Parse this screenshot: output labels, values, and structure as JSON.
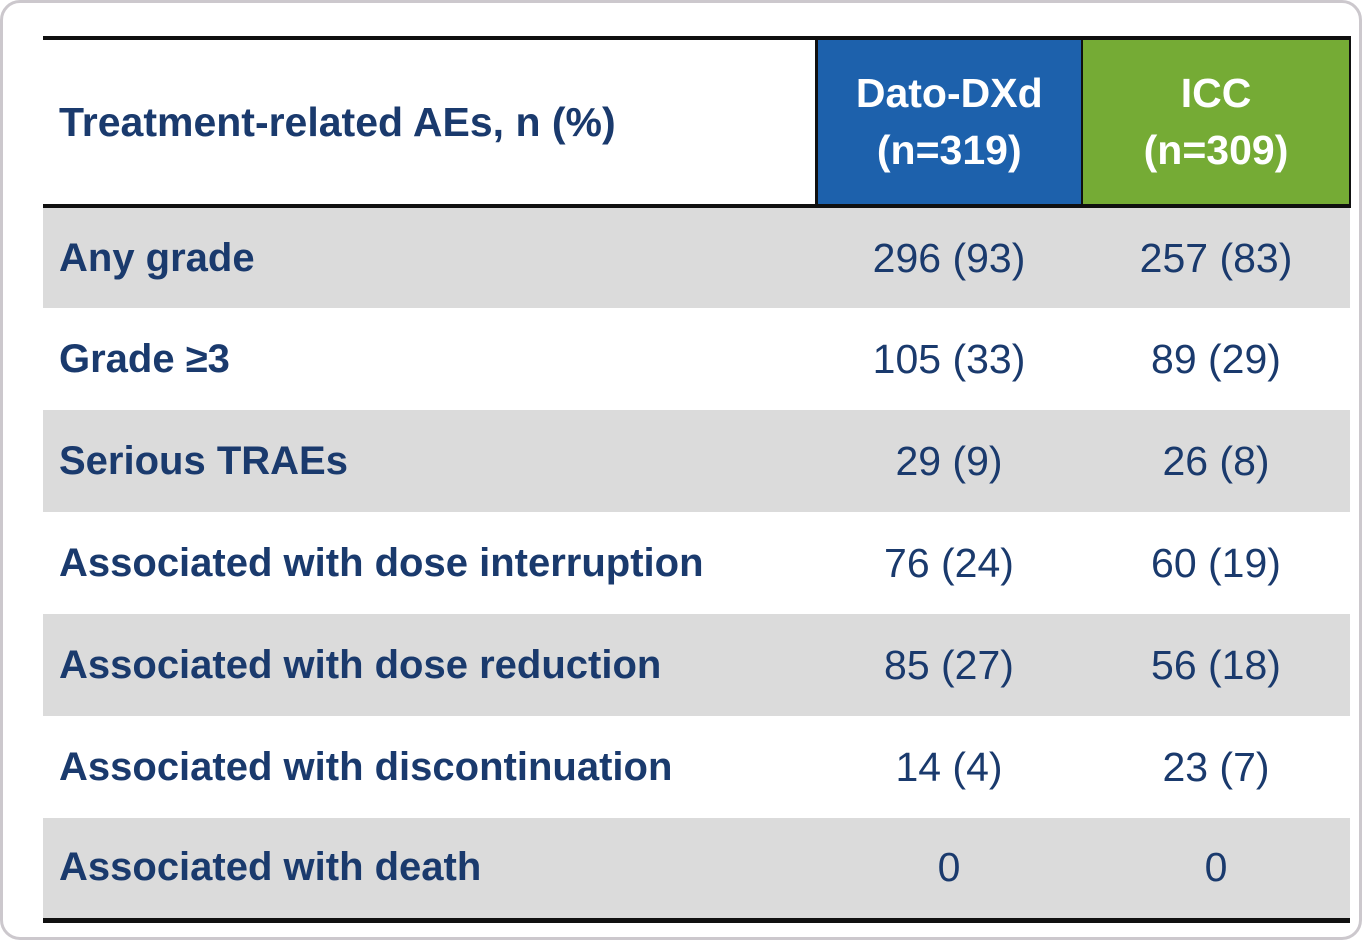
{
  "chart_data": {
    "type": "table",
    "title": "Treatment-related AEs, n (%)",
    "column_headers": [
      {
        "label": "Treatment-related AEs, n (%)"
      },
      {
        "drug": "Dato-DXd",
        "n_label": "(n=319)",
        "n": 319
      },
      {
        "drug": "ICC",
        "n_label": "(n=309)",
        "n": 309
      }
    ],
    "rows": [
      {
        "label": "Any grade",
        "dato_dxd": "296 (93)",
        "icc": "257 (83)"
      },
      {
        "label": "Grade ≥3",
        "dato_dxd": "105 (33)",
        "icc": "89 (29)"
      },
      {
        "label": "Serious TRAEs",
        "dato_dxd": "29 (9)",
        "icc": "26 (8)"
      },
      {
        "label": "Associated with dose interruption",
        "dato_dxd": "76 (24)",
        "icc": "60 (19)"
      },
      {
        "label": "Associated with dose reduction",
        "dato_dxd": "85 (27)",
        "icc": "56 (18)"
      },
      {
        "label": "Associated with discontinuation",
        "dato_dxd": "14 (4)",
        "icc": "23 (7)"
      },
      {
        "label": "Associated with death",
        "dato_dxd": "0",
        "icc": "0"
      }
    ],
    "colors": {
      "dato_header_bg": "#1d61ac",
      "icc_header_bg": "#75ab35",
      "alt_row_bg": "#dbdbdb",
      "text_navy": "#1a3a6d",
      "header_text": "#ffffff",
      "table_border": "#101010",
      "card_border": "#ccc8cd"
    },
    "layout": {
      "striped": true,
      "first_body_row_shaded": true,
      "value_alignment": "center"
    }
  }
}
